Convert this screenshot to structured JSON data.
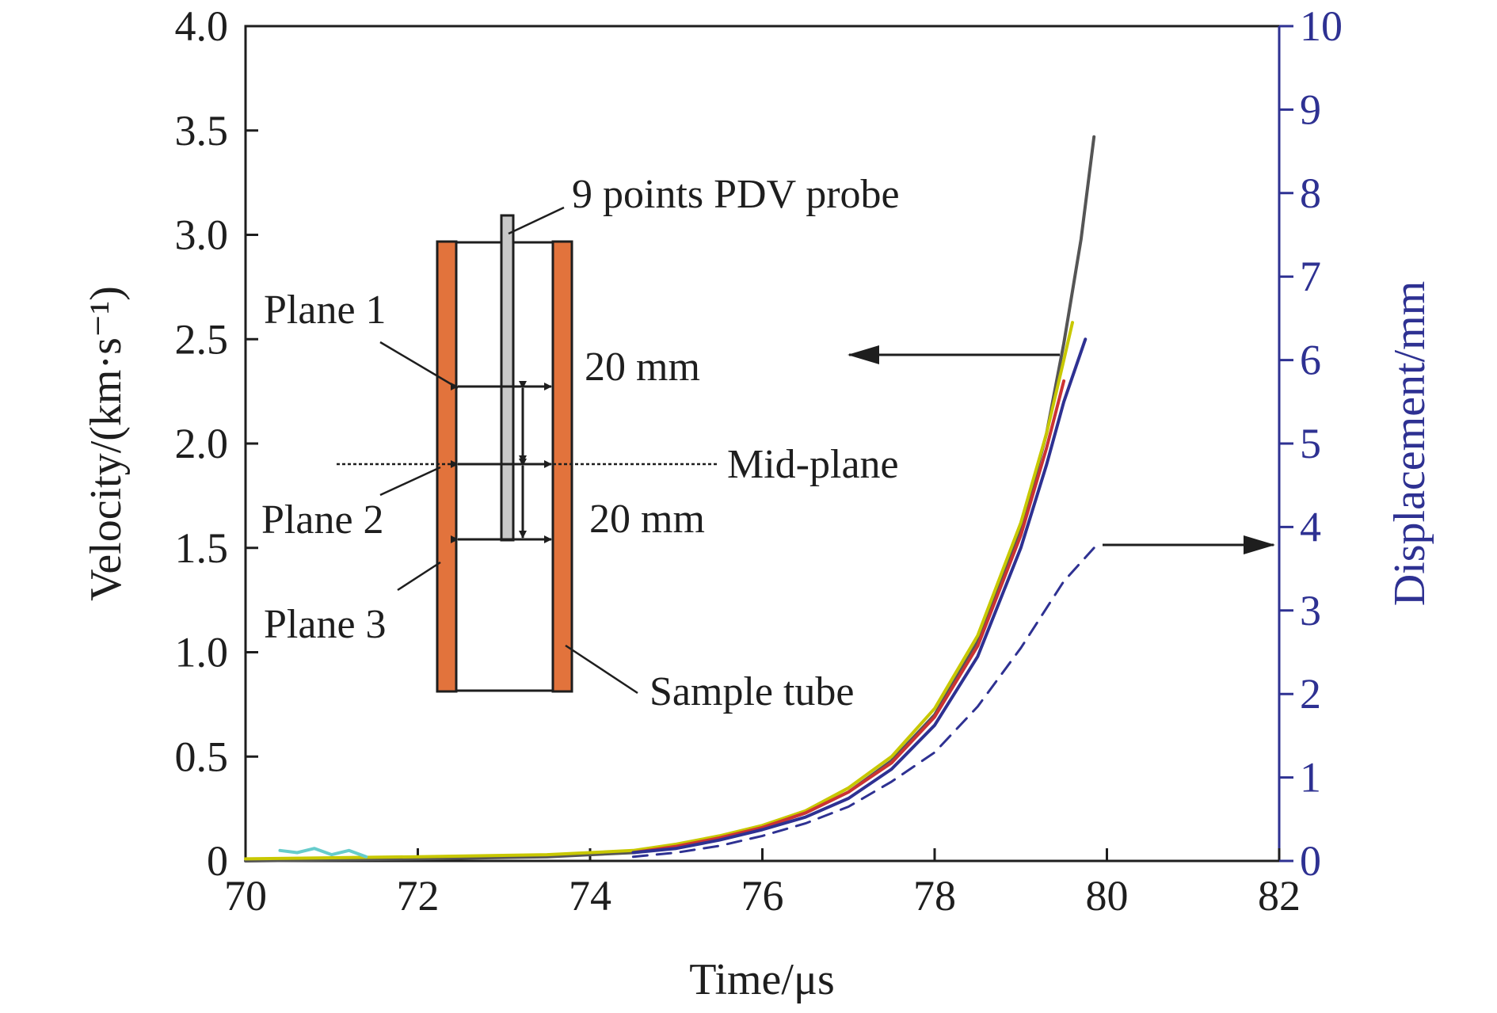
{
  "chart_data": {
    "type": "line",
    "xlabel": "Time/μs",
    "ylabel_left": "Velocity/(km·s⁻¹)",
    "ylabel_right": "Displacement/mm",
    "xlim": [
      70,
      82
    ],
    "ylim_left": [
      0,
      4
    ],
    "ylim_right": [
      0,
      10
    ],
    "x_ticks": [
      "70",
      "72",
      "74",
      "76",
      "78",
      "80",
      "82"
    ],
    "y_left_ticks": [
      "0",
      "0.5",
      "1.0",
      "1.5",
      "2.0",
      "2.5",
      "3.0",
      "3.5",
      "4.0"
    ],
    "y_right_ticks": [
      "0",
      "1",
      "2",
      "3",
      "4",
      "5",
      "6",
      "7",
      "8",
      "9",
      "10"
    ],
    "grid": false,
    "series": [
      {
        "axis": "left",
        "color": "#555555",
        "x": [
          70.0,
          72.0,
          73.5,
          74.5,
          75.0,
          75.5,
          76.0,
          76.5,
          77.0,
          77.5,
          78.0,
          78.5,
          79.0,
          79.3,
          79.5,
          79.7,
          79.85
        ],
        "y": [
          0.0,
          0.01,
          0.02,
          0.04,
          0.07,
          0.11,
          0.16,
          0.23,
          0.33,
          0.48,
          0.7,
          1.05,
          1.58,
          2.05,
          2.48,
          2.98,
          3.47
        ]
      },
      {
        "axis": "left",
        "color": "#c8c800",
        "x": [
          70.0,
          72.0,
          73.5,
          74.5,
          75.0,
          75.5,
          76.0,
          76.5,
          77.0,
          77.5,
          78.0,
          78.5,
          79.0,
          79.3,
          79.5,
          79.6
        ],
        "y": [
          0.01,
          0.02,
          0.03,
          0.05,
          0.08,
          0.12,
          0.17,
          0.24,
          0.35,
          0.5,
          0.73,
          1.08,
          1.62,
          2.05,
          2.4,
          2.58
        ]
      },
      {
        "axis": "left",
        "color": "#cc3333",
        "x": [
          74.5,
          75.0,
          75.5,
          76.0,
          76.5,
          77.0,
          77.5,
          78.0,
          78.5,
          79.0,
          79.3,
          79.5
        ],
        "y": [
          0.04,
          0.07,
          0.11,
          0.16,
          0.23,
          0.33,
          0.47,
          0.69,
          1.03,
          1.56,
          1.98,
          2.3
        ]
      },
      {
        "axis": "left",
        "color": "#2e3192",
        "x": [
          74.5,
          75.0,
          75.5,
          76.0,
          76.5,
          77.0,
          77.5,
          78.0,
          78.5,
          79.0,
          79.3,
          79.5,
          79.75
        ],
        "y": [
          0.04,
          0.06,
          0.1,
          0.15,
          0.21,
          0.3,
          0.44,
          0.65,
          0.98,
          1.5,
          1.9,
          2.2,
          2.5
        ]
      },
      {
        "axis": "left",
        "color": "#66cccc",
        "x": [
          70.4,
          70.6,
          70.8,
          71.0,
          71.2,
          71.4
        ],
        "y": [
          0.05,
          0.04,
          0.06,
          0.03,
          0.05,
          0.02
        ]
      },
      {
        "axis": "right",
        "color": "#2e3192",
        "dashed": true,
        "x": [
          74.5,
          75.0,
          75.5,
          76.0,
          76.5,
          77.0,
          77.5,
          78.0,
          78.5,
          79.0,
          79.5,
          79.85
        ],
        "y": [
          0.05,
          0.1,
          0.18,
          0.3,
          0.45,
          0.65,
          0.95,
          1.3,
          1.85,
          2.55,
          3.35,
          3.75
        ]
      }
    ]
  },
  "inset": {
    "probe_label": "9 points PDV probe",
    "plane1": "Plane 1",
    "plane2": "Plane 2",
    "plane3": "Plane 3",
    "dim_upper": "20 mm",
    "dim_lower": "20 mm",
    "midplane": "Mid-plane",
    "tube_label": "Sample tube",
    "tube_color": "#e2733c"
  }
}
